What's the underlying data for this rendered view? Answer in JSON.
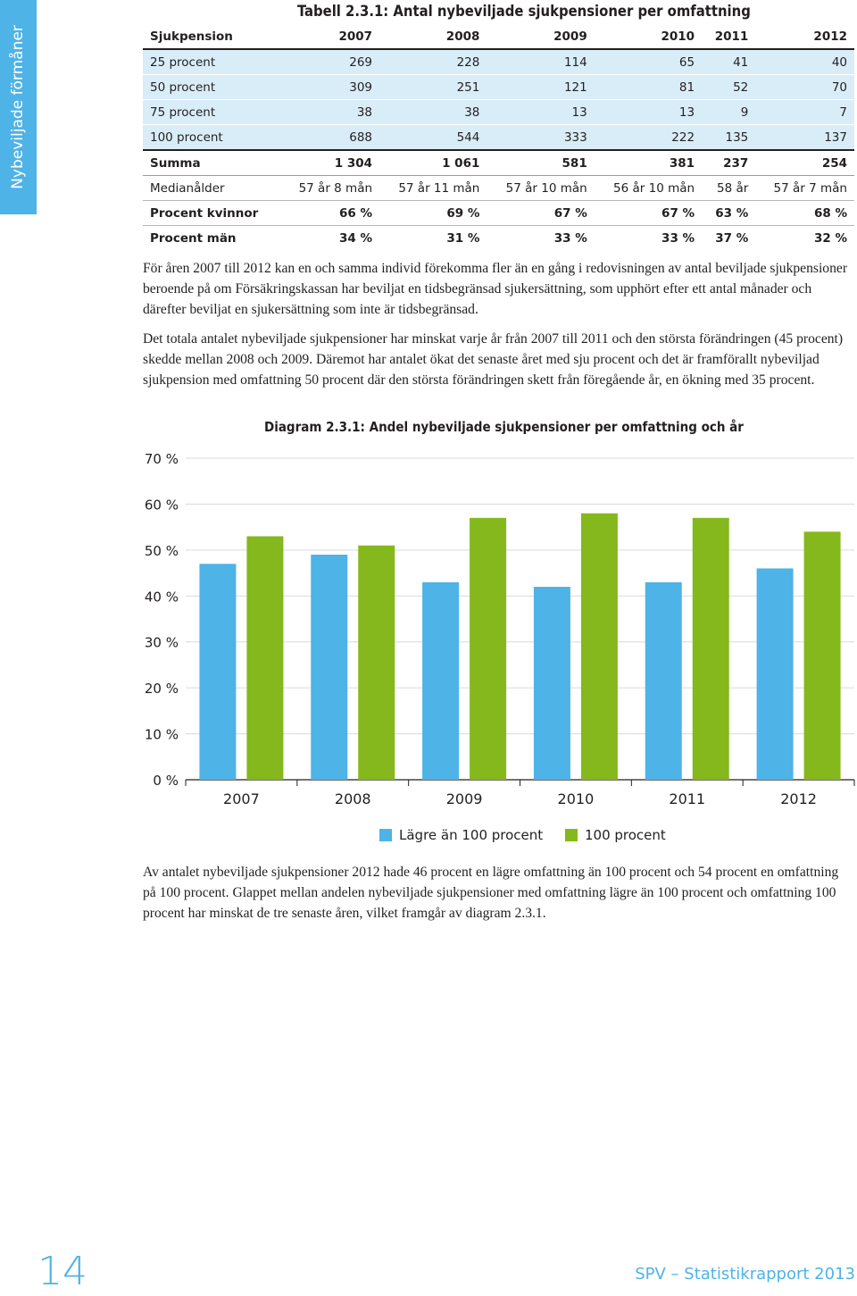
{
  "sidebar": {
    "label": "Nybeviljade förmåner"
  },
  "table": {
    "title": "Tabell 2.3.1: Antal nybeviljade sjukpensioner per omfattning",
    "header": [
      "Sjukpension",
      "2007",
      "2008",
      "2009",
      "2010",
      "2011",
      "2012"
    ],
    "rows": [
      [
        "25 procent",
        "269",
        "228",
        "114",
        "65",
        "41",
        "40"
      ],
      [
        "50 procent",
        "309",
        "251",
        "121",
        "81",
        "52",
        "70"
      ],
      [
        "75 procent",
        "38",
        "38",
        "13",
        "13",
        "9",
        "7"
      ],
      [
        "100 procent",
        "688",
        "544",
        "333",
        "222",
        "135",
        "137"
      ],
      [
        "Summa",
        "1 304",
        "1 061",
        "581",
        "381",
        "237",
        "254"
      ],
      [
        "Medianålder",
        "57 år 8 mån",
        "57 år 11 mån",
        "57 år 10 mån",
        "56 år 10 mån",
        "58 år",
        "57 år 7 mån"
      ],
      [
        "Procent kvinnor",
        "66 %",
        "69 %",
        "67 %",
        "67 %",
        "63 %",
        "68 %"
      ],
      [
        "Procent män",
        "34 %",
        "31 %",
        "33 %",
        "33 %",
        "37 %",
        "32 %"
      ]
    ]
  },
  "paragraphs": {
    "p1": "För åren 2007 till 2012 kan en och samma individ förekomma fler än en gång i redovisningen av antal beviljade sjukpensioner beroende på om Försäkringskassan har beviljat en tidsbegränsad sjukersättning, som upphört efter ett antal månader och därefter beviljat en sjukersättning som inte är tidsbegränsad.",
    "p2": "Det totala antalet nybeviljade sjukpensioner har minskat varje år från 2007 till 2011 och den största förändringen (45 procent) skedde mellan 2008 och 2009. Däremot har antalet ökat det senaste året med sju procent och det är framförallt nybeviljad sjukpension med omfattning 50 procent där den största förändringen skett från föregående år, en ökning med 35 procent.",
    "p3": "Av antalet nybeviljade sjukpensioner 2012 hade 46 procent en lägre omfattning än 100 procent och 54 procent en omfattning på 100 procent. Glappet mellan andelen nybeviljade sjukpensioner med omfattning lägre än 100 procent och omfattning 100 procent har minskat de tre senaste åren, vilket framgår av diagram 2.3.1."
  },
  "chart_data": {
    "type": "bar",
    "title": "Diagram 2.3.1: Andel nybeviljade sjukpensioner per omfattning och år",
    "categories": [
      "2007",
      "2008",
      "2009",
      "2010",
      "2011",
      "2012"
    ],
    "series": [
      {
        "name": "Lägre än 100 procent",
        "color": "#4eb3e6",
        "values": [
          47,
          49,
          43,
          42,
          43,
          46
        ]
      },
      {
        "name": "100 procent",
        "color": "#85b81c",
        "values": [
          53,
          51,
          57,
          58,
          57,
          54
        ]
      }
    ],
    "yticks": [
      "0 %",
      "10 %",
      "20 %",
      "30 %",
      "40 %",
      "50 %",
      "60 %",
      "70 %"
    ],
    "ylim": [
      0,
      70
    ],
    "grid": true,
    "legend": "bottom"
  },
  "footer": {
    "page_number": "14",
    "label": "SPV – Statistikrapport 2013"
  }
}
